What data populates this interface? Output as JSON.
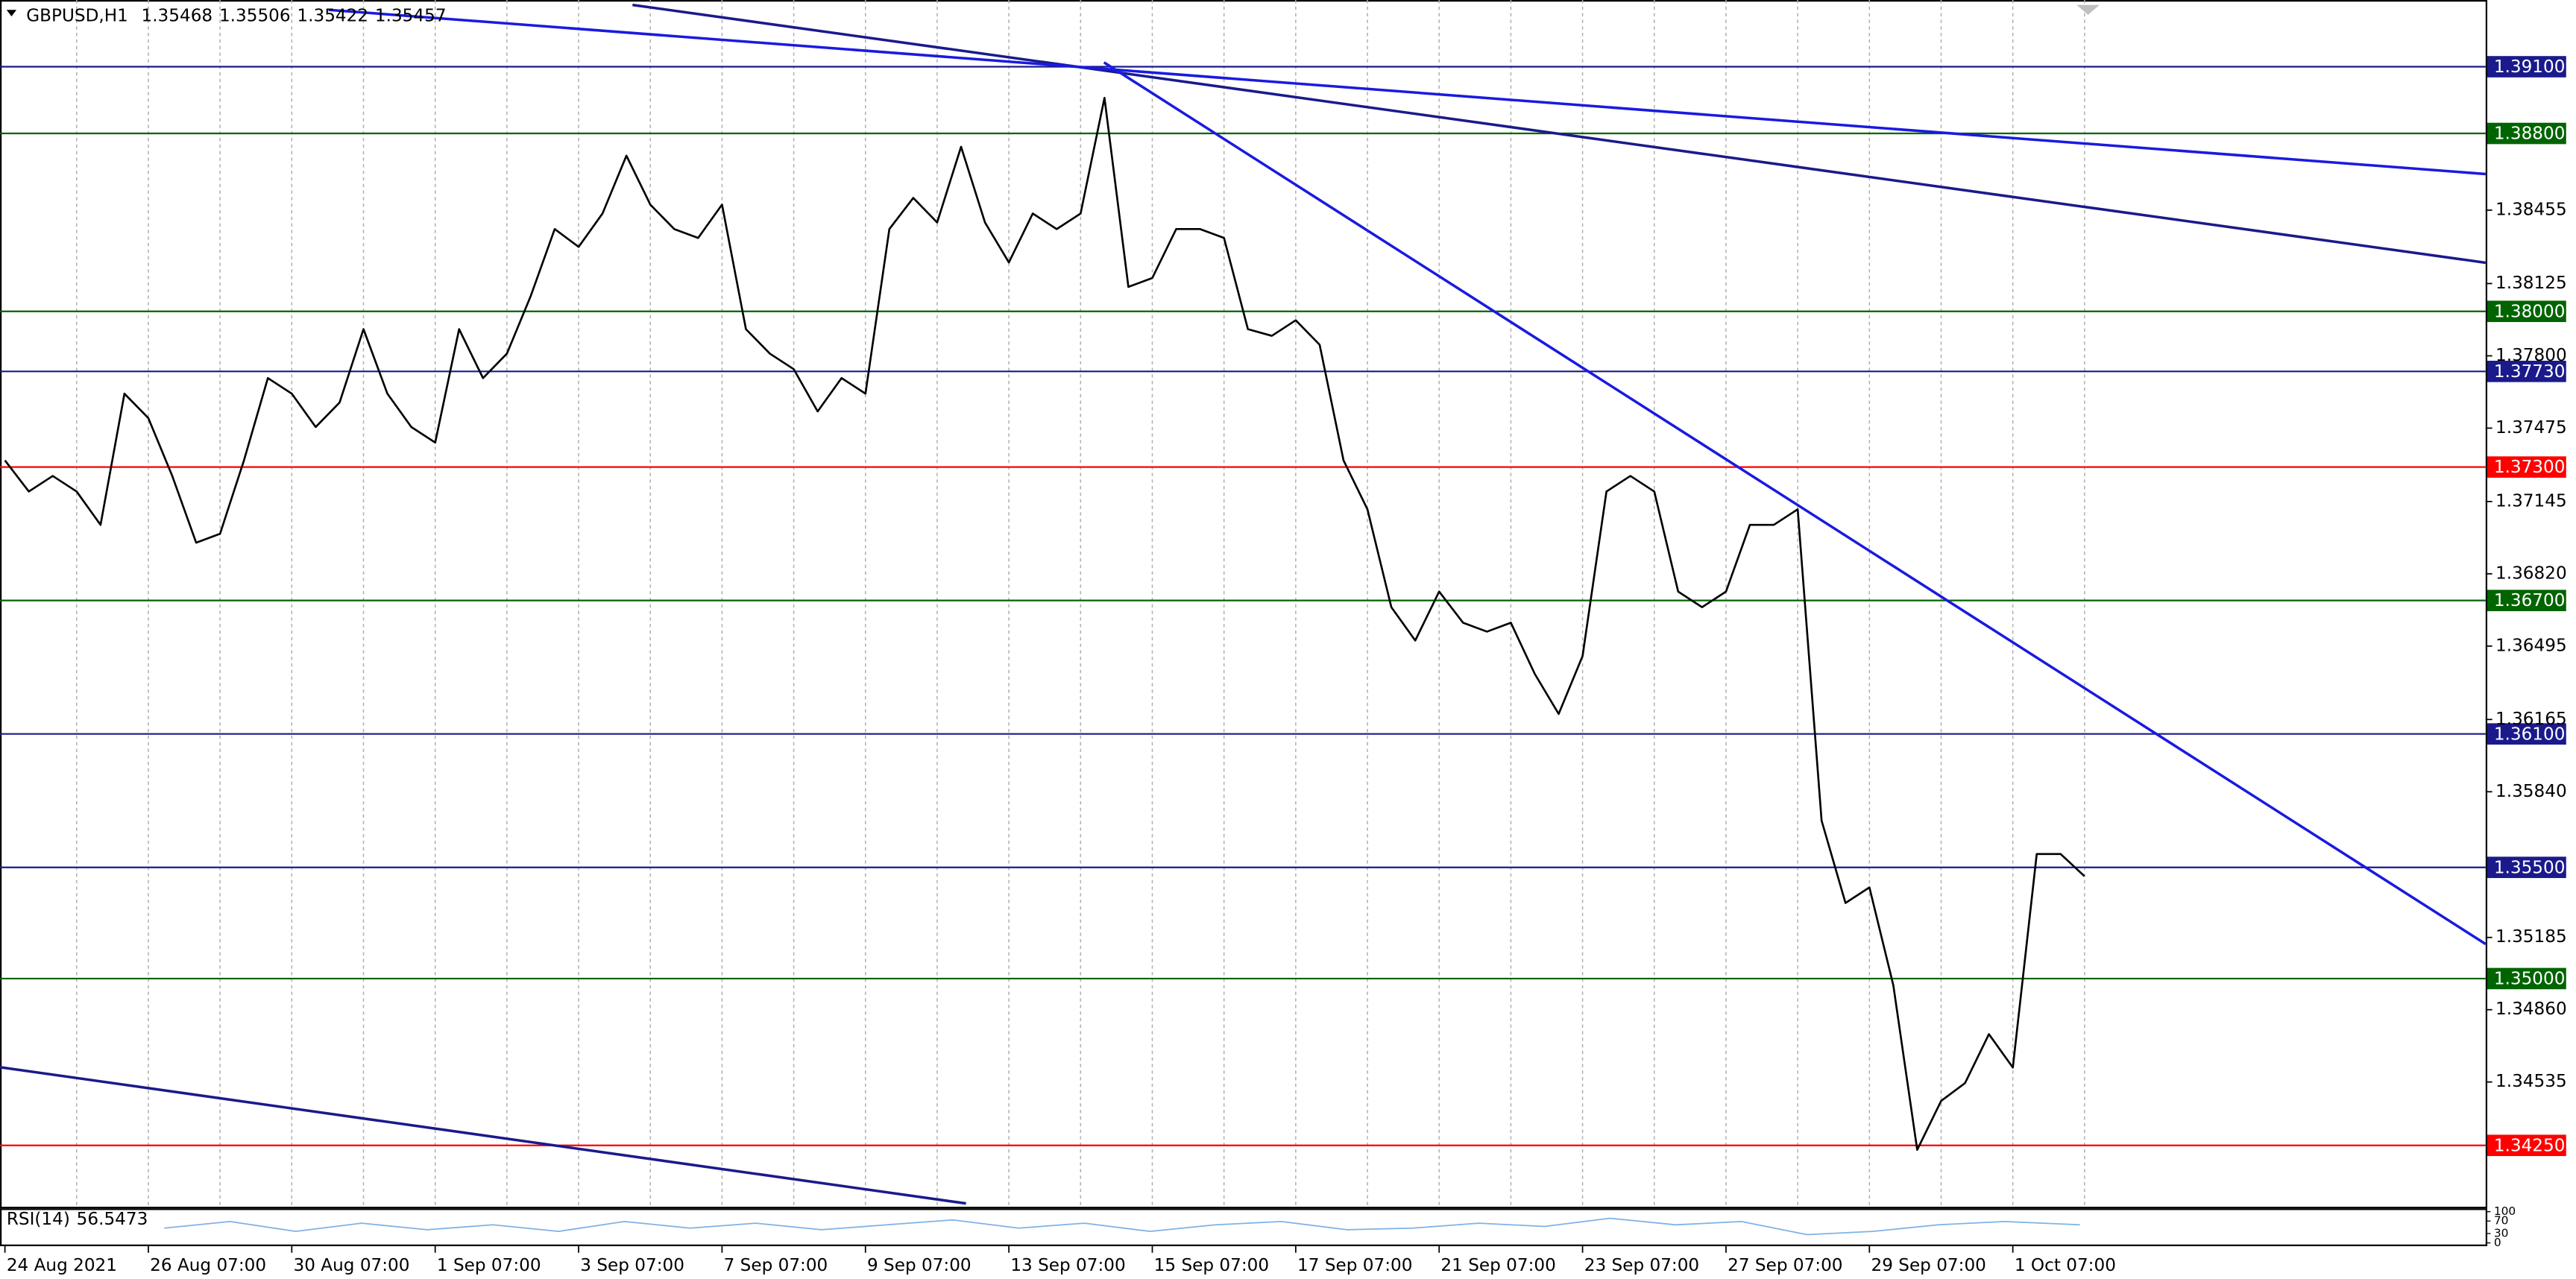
{
  "chart_data": {
    "type": "line",
    "header": {
      "symbol": "GBPUSD,H1",
      "open": 1.35468,
      "high": 1.35506,
      "low": 1.35422,
      "close": 1.35457
    },
    "categories": [
      "24 Aug 2021",
      null,
      null,
      null,
      null,
      null,
      "26 Aug 07:00",
      null,
      null,
      null,
      null,
      null,
      "30 Aug 07:00",
      null,
      null,
      null,
      null,
      null,
      "1 Sep 07:00",
      null,
      null,
      null,
      null,
      null,
      "3 Sep 07:00",
      null,
      null,
      null,
      null,
      null,
      "7 Sep 07:00",
      null,
      null,
      null,
      null,
      null,
      "9 Sep 07:00",
      null,
      null,
      null,
      null,
      null,
      "13 Sep 07:00",
      null,
      null,
      null,
      null,
      null,
      "15 Sep 07:00",
      null,
      null,
      null,
      null,
      null,
      "17 Sep 07:00",
      null,
      null,
      null,
      null,
      null,
      "21 Sep 07:00",
      null,
      null,
      null,
      null,
      null,
      "23 Sep 07:00",
      null,
      null,
      null,
      null,
      null,
      "27 Sep 07:00",
      null,
      null,
      null,
      null,
      null,
      "29 Sep 07:00",
      null,
      null,
      null,
      null,
      null,
      "1 Oct 07:00",
      null,
      null,
      null
    ],
    "values": [
      1.3733,
      1.3719,
      1.3726,
      1.3719,
      1.3704,
      1.3763,
      1.3752,
      1.3726,
      1.3696,
      1.37,
      1.3733,
      1.377,
      1.3763,
      1.3748,
      1.3759,
      1.3792,
      1.3763,
      1.3748,
      1.3741,
      1.3792,
      1.377,
      1.3781,
      1.3807,
      1.3837,
      1.3829,
      1.3844,
      1.387,
      1.3848,
      1.3837,
      1.3833,
      1.3848,
      1.3792,
      1.3781,
      1.3774,
      1.3755,
      1.377,
      1.3763,
      1.3837,
      1.3851,
      1.384,
      1.3874,
      1.384,
      1.3822,
      1.3844,
      1.3837,
      1.3844,
      1.3896,
      1.3811,
      1.3815,
      1.3837,
      1.3837,
      1.3833,
      1.3792,
      1.3789,
      1.3796,
      1.3785,
      1.3733,
      1.3711,
      1.3667,
      1.3652,
      1.3674,
      1.366,
      1.3656,
      1.366,
      1.3637,
      1.3619,
      1.3645,
      1.3719,
      1.3726,
      1.3719,
      1.3674,
      1.3667,
      1.3674,
      1.3704,
      1.3704,
      1.3711,
      1.3571,
      1.3534,
      1.3541,
      1.3497,
      1.3423,
      1.3445,
      1.3453,
      1.3475,
      1.346,
      1.3556,
      1.3556,
      1.3546
    ],
    "color": "#000000",
    "ylim": [
      1.33974,
      1.394
    ],
    "yticks": [
      1.38455,
      1.38125,
      {
        "value": 1.378,
        "label": "1.37800"
      },
      1.37475,
      1.37145,
      {
        "value": 1.3682,
        "label": "1.36820"
      },
      1.36495,
      1.36165,
      {
        "value": 1.3584,
        "label": "1.35840"
      },
      1.35185,
      {
        "value": 1.3486,
        "label": "1.34860"
      },
      1.34535
    ],
    "grid": true,
    "levels": [
      {
        "value": 1.391,
        "label": "1.39100",
        "color": "#1a1a8c"
      },
      {
        "value": 1.388,
        "label": "1.38800",
        "color": "#006400"
      },
      {
        "value": 1.38,
        "label": "1.38000",
        "color": "#006400"
      },
      {
        "value": 1.3773,
        "label": "1.37730",
        "color": "#1a1a8c"
      },
      {
        "value": 1.373,
        "label": "1.37300",
        "color": "#ff0000"
      },
      {
        "value": 1.367,
        "label": "1.36700",
        "color": "#006400"
      },
      {
        "value": 1.361,
        "label": "1.36100",
        "color": "#1a1a8c"
      },
      {
        "value": 1.355,
        "label": "1.35500",
        "color": "#1a1a8c"
      },
      {
        "value": 1.35,
        "label": "1.35000",
        "color": "#006400"
      },
      {
        "value": 1.3425,
        "label": "1.34250",
        "color": "#ff0000"
      }
    ],
    "rsi": {
      "label": "RSI(14)",
      "value": 56.5473,
      "ylim": [
        0,
        100
      ],
      "yticks": [
        0,
        30,
        70,
        100
      ]
    }
  }
}
